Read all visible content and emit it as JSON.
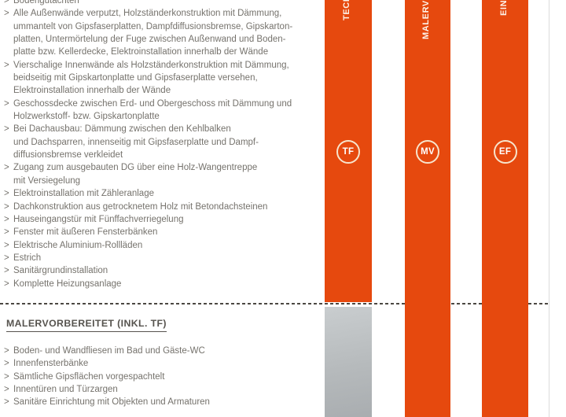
{
  "bullet_char": ">",
  "colors": {
    "accent_orange": "#e6490e",
    "inactive_gray_top": "#c9cdcf",
    "inactive_gray_bottom": "#a9adb0",
    "body_text": "#75726c",
    "heading_text": "#56534e",
    "dash_line": "#4c4842",
    "badge_ring": "#f7e4cc"
  },
  "sections": [
    {
      "id": "technikfertig-list",
      "items": [
        [
          "Bodengutachten"
        ],
        [
          "Alle Außenwände verputzt, Holzständerkonstruktion mit Dämmung,",
          "ummantelt von Gipsfaserplatten, Dampfdiffusionsbremse, Gipskarton-",
          "platten, Untermörtelung der Fuge zwischen Außenwand und Boden-",
          "platte bzw. Kellerdecke, Elektroinstallation innerhalb der Wände"
        ],
        [
          "Vierschalige Innenwände als Holzständerkonstruktion mit Dämmung,",
          "beidseitig mit Gipskartonplatte und Gipsfaserplatte versehen,",
          "Elektroinstallation innerhalb der Wände"
        ],
        [
          "Geschossdecke zwischen Erd- und Obergeschoss mit Dämmung und",
          "Holzwerkstoff- bzw. Gipskartonplatte"
        ],
        [
          "Bei Dachausbau: Dämmung zwischen den Kehlbalken",
          "und Dachsparren, innenseitig mit Gipsfaserplatte und Dampf-",
          "diffusionsbremse verkleidet"
        ],
        [
          "Zugang zum ausgebauten DG über eine Holz-Wangentreppe",
          "mit Versiegelung"
        ],
        [
          "Elektroinstallation mit Zähleranlage"
        ],
        [
          "Dachkonstruktion aus getrocknetem Holz mit Betondachsteinen"
        ],
        [
          "Hauseingangstür mit Fünffachverriegelung"
        ],
        [
          "Fenster mit äußeren Fensterbänken"
        ],
        [
          "Elektrische Aluminium-Rollläden"
        ],
        [
          "Estrich"
        ],
        [
          "Sanitärgrundinstallation"
        ],
        [
          "Komplette Heizungsanlage"
        ]
      ]
    },
    {
      "id": "malervorbereitet-list",
      "heading": "MALERVORBEREITET (INKL. TF)",
      "items": [
        [
          "Boden- und Wandfliesen im Bad und Gäste-WC"
        ],
        [
          "Innenfensterbänke"
        ],
        [
          "Sämtliche Gipsflächen vorgespachtelt"
        ],
        [
          "Innentüren und Türzargen"
        ],
        [
          "Sanitäre Einrichtung mit Objekten und Armaturen"
        ]
      ]
    }
  ],
  "columns": [
    {
      "code": "TF",
      "label": "TECHNIKFERTIG"
    },
    {
      "code": "MV",
      "label": "MALERVORBEREITET"
    },
    {
      "code": "EF",
      "label": "EINZUGSFERTIG"
    }
  ]
}
